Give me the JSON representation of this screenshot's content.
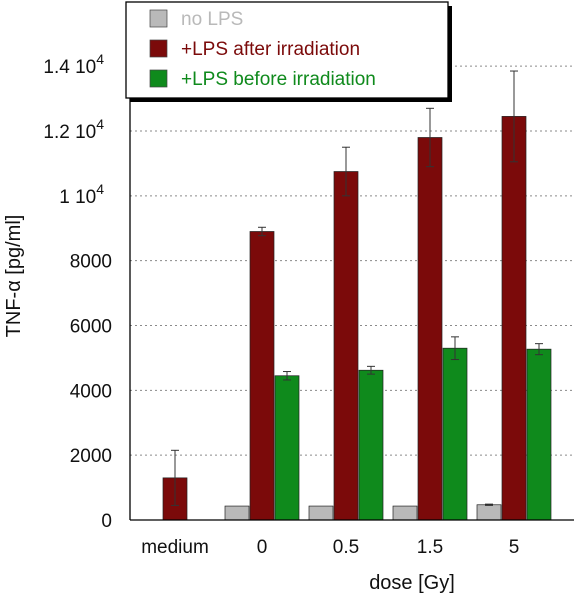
{
  "chart_data": {
    "type": "bar",
    "categories": [
      "medium",
      "0",
      "0.5",
      "1.5",
      "5"
    ],
    "series": [
      {
        "name": "no LPS",
        "color": "#b9b9b9",
        "values": [
          null,
          430,
          430,
          430,
          470
        ],
        "errors": [
          null,
          0,
          0,
          0,
          20
        ]
      },
      {
        "name": "+LPS after irradiation",
        "color": "#7b0a0a",
        "values": [
          1300,
          8900,
          10750,
          11800,
          12450
        ],
        "errors": [
          850,
          130,
          750,
          900,
          1400
        ]
      },
      {
        "name": "+LPS before irradiation",
        "color": "#0f8a1c",
        "values": [
          null,
          4450,
          4620,
          5300,
          5270
        ],
        "errors": [
          null,
          130,
          120,
          350,
          170
        ]
      }
    ],
    "xlabel": "dose [Gy]",
    "ylabel": "TNF-α [pg/ml]",
    "ylim": [
      0,
      14000
    ],
    "yticks": [
      0,
      2000,
      4000,
      6000,
      8000,
      10000,
      12000,
      14000
    ],
    "ytick_labels": [
      "0",
      "2000",
      "4000",
      "6000",
      "8000",
      "1 10",
      "1.2 10",
      "1.4 10"
    ],
    "ytick_exponents": [
      "",
      "",
      "",
      "",
      "",
      "4",
      "4",
      "4"
    ],
    "grid": "horizontal dotted",
    "legend_position": "top"
  }
}
